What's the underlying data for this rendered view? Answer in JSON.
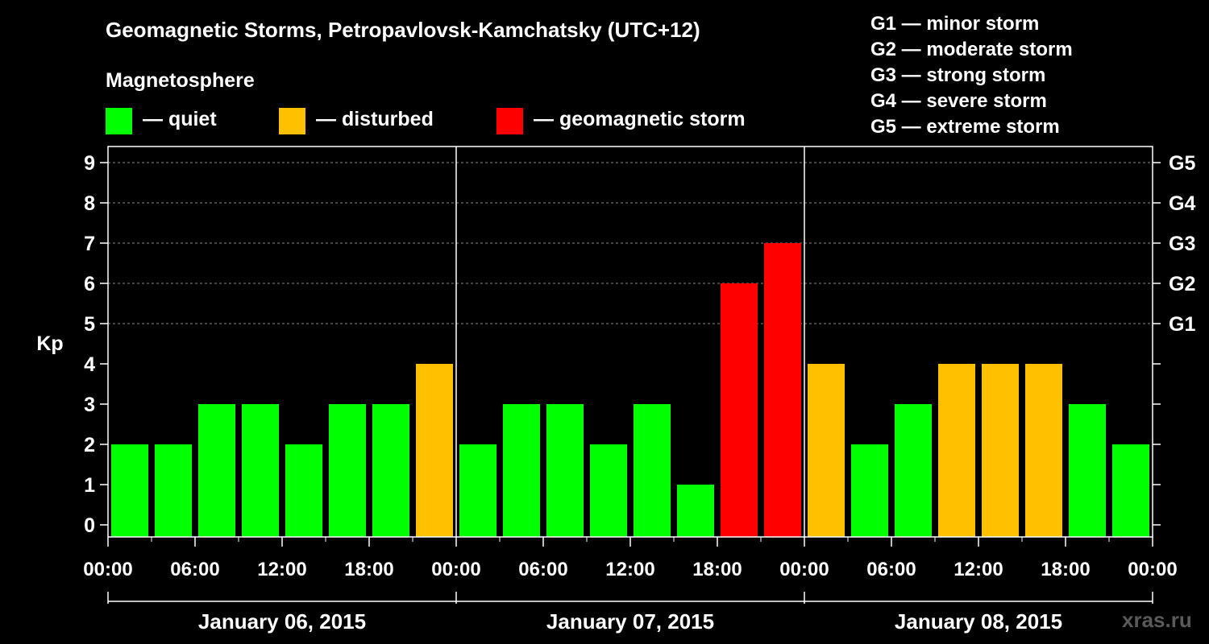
{
  "title": "Geomagnetic Storms, Petropavlovsk-Kamchatsky (UTC+12)",
  "legend": {
    "title": "Magnetosphere",
    "items": [
      {
        "label": "— quiet",
        "color": "#00ff00"
      },
      {
        "label": "— disturbed",
        "color": "#ffc000"
      },
      {
        "label": "— geomagnetic storm",
        "color": "#ff0000"
      }
    ]
  },
  "storm_levels": [
    "G1 — minor storm",
    "G2 — moderate storm",
    "G3 — strong storm",
    "G4 — severe storm",
    "G5 — extreme storm"
  ],
  "watermark": "xras.ru",
  "chart_data": {
    "type": "bar",
    "title": "Geomagnetic Storms, Petropavlovsk-Kamchatsky (UTC+12)",
    "ylabel": "Kp",
    "xlabel": "",
    "ylim": [
      0,
      9
    ],
    "y_ticks": [
      "0",
      "1",
      "2",
      "3",
      "4",
      "5",
      "6",
      "7",
      "8",
      "9"
    ],
    "right_ticks": [
      {
        "value": 5,
        "label": "G1"
      },
      {
        "value": 6,
        "label": "G2"
      },
      {
        "value": 7,
        "label": "G3"
      },
      {
        "value": 8,
        "label": "G4"
      },
      {
        "value": 9,
        "label": "G5"
      }
    ],
    "grid_lines": [
      5,
      6,
      7,
      8,
      9
    ],
    "x_tick_labels": [
      "00:00",
      "06:00",
      "12:00",
      "18:00",
      "00:00",
      "06:00",
      "12:00",
      "18:00",
      "00:00",
      "06:00",
      "12:00",
      "18:00",
      "00:00"
    ],
    "days": [
      "January 06, 2015",
      "January 07, 2015",
      "January 08, 2015"
    ],
    "categories": [
      "Jan 06 00-03",
      "Jan 06 03-06",
      "Jan 06 06-09",
      "Jan 06 09-12",
      "Jan 06 12-15",
      "Jan 06 15-18",
      "Jan 06 18-21",
      "Jan 06 21-24",
      "Jan 07 00-03",
      "Jan 07 03-06",
      "Jan 07 06-09",
      "Jan 07 09-12",
      "Jan 07 12-15",
      "Jan 07 15-18",
      "Jan 07 18-21",
      "Jan 07 21-24",
      "Jan 08 00-03",
      "Jan 08 03-06",
      "Jan 08 06-09",
      "Jan 08 09-12",
      "Jan 08 12-15",
      "Jan 08 15-18",
      "Jan 08 18-21",
      "Jan 08 21-24"
    ],
    "values": [
      2,
      2,
      3,
      3,
      2,
      3,
      3,
      4,
      2,
      3,
      3,
      2,
      3,
      1,
      6,
      7,
      4,
      2,
      3,
      4,
      4,
      4,
      3,
      2
    ],
    "level_colors": {
      "quiet": "#00ff00",
      "disturbed": "#ffc000",
      "storm": "#ff0000"
    }
  }
}
